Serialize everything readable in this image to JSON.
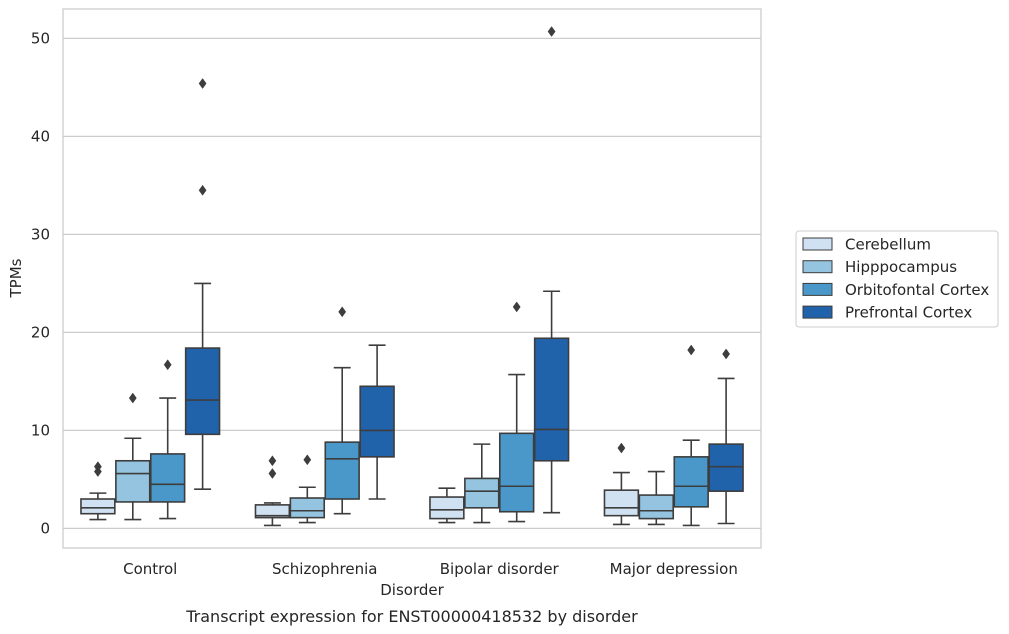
{
  "chart_data": {
    "type": "box",
    "caption": "Transcript expression for ENST00000418532 by disorder",
    "xlabel": "Disorder",
    "ylabel": "TPMs",
    "ylim": [
      -2,
      53
    ],
    "yticks": [
      0,
      10,
      20,
      30,
      40,
      50
    ],
    "grid": "horizontal",
    "legend_position": "right",
    "categories": [
      "Control",
      "Schizophrenia",
      "Bipolar disorder",
      "Major depression"
    ],
    "series": [
      {
        "name": "Cerebellum",
        "color": "#d0e1f2",
        "boxes": [
          {
            "whisker_low": 0.9,
            "q1": 1.5,
            "median": 2.1,
            "q3": 3.0,
            "whisker_high": 3.6,
            "outliers": [
              5.8,
              6.3
            ]
          },
          {
            "whisker_low": 0.3,
            "q1": 1.1,
            "median": 1.3,
            "q3": 2.4,
            "whisker_high": 2.6,
            "outliers": [
              5.6,
              6.9
            ]
          },
          {
            "whisker_low": 0.6,
            "q1": 1.0,
            "median": 1.9,
            "q3": 3.2,
            "whisker_high": 4.1,
            "outliers": []
          },
          {
            "whisker_low": 0.4,
            "q1": 1.3,
            "median": 2.1,
            "q3": 3.9,
            "whisker_high": 5.7,
            "outliers": [
              8.2
            ]
          }
        ]
      },
      {
        "name": "Hipppocampus",
        "color": "#94c4df",
        "boxes": [
          {
            "whisker_low": 0.9,
            "q1": 2.7,
            "median": 5.6,
            "q3": 6.9,
            "whisker_high": 9.2,
            "outliers": [
              13.3
            ]
          },
          {
            "whisker_low": 0.6,
            "q1": 1.1,
            "median": 1.8,
            "q3": 3.1,
            "whisker_high": 4.2,
            "outliers": [
              7.0
            ]
          },
          {
            "whisker_low": 0.6,
            "q1": 2.1,
            "median": 3.8,
            "q3": 5.1,
            "whisker_high": 8.6,
            "outliers": []
          },
          {
            "whisker_low": 0.4,
            "q1": 1.0,
            "median": 1.8,
            "q3": 3.4,
            "whisker_high": 5.8,
            "outliers": []
          }
        ]
      },
      {
        "name": "Orbitofontal Cortex",
        "color": "#4a98c9",
        "boxes": [
          {
            "whisker_low": 1.0,
            "q1": 2.7,
            "median": 4.5,
            "q3": 7.6,
            "whisker_high": 13.3,
            "outliers": [
              16.7
            ]
          },
          {
            "whisker_low": 1.5,
            "q1": 3.0,
            "median": 7.1,
            "q3": 8.8,
            "whisker_high": 16.4,
            "outliers": [
              22.1
            ]
          },
          {
            "whisker_low": 0.7,
            "q1": 1.7,
            "median": 4.3,
            "q3": 9.7,
            "whisker_high": 15.7,
            "outliers": [
              22.6
            ]
          },
          {
            "whisker_low": 0.3,
            "q1": 2.2,
            "median": 4.3,
            "q3": 7.3,
            "whisker_high": 9.0,
            "outliers": [
              18.2
            ]
          }
        ]
      },
      {
        "name": "Prefrontal Cortex",
        "color": "#2163aa",
        "boxes": [
          {
            "whisker_low": 4.0,
            "q1": 9.6,
            "median": 13.1,
            "q3": 18.4,
            "whisker_high": 25.0,
            "outliers": [
              34.5,
              45.4
            ]
          },
          {
            "whisker_low": 3.0,
            "q1": 7.3,
            "median": 10.0,
            "q3": 14.5,
            "whisker_high": 18.7,
            "outliers": []
          },
          {
            "whisker_low": 1.6,
            "q1": 6.9,
            "median": 10.1,
            "q3": 19.4,
            "whisker_high": 24.2,
            "outliers": [
              50.7
            ]
          },
          {
            "whisker_low": 0.5,
            "q1": 3.8,
            "median": 6.3,
            "q3": 8.6,
            "whisker_high": 15.3,
            "outliers": [
              17.8
            ]
          }
        ]
      }
    ]
  }
}
